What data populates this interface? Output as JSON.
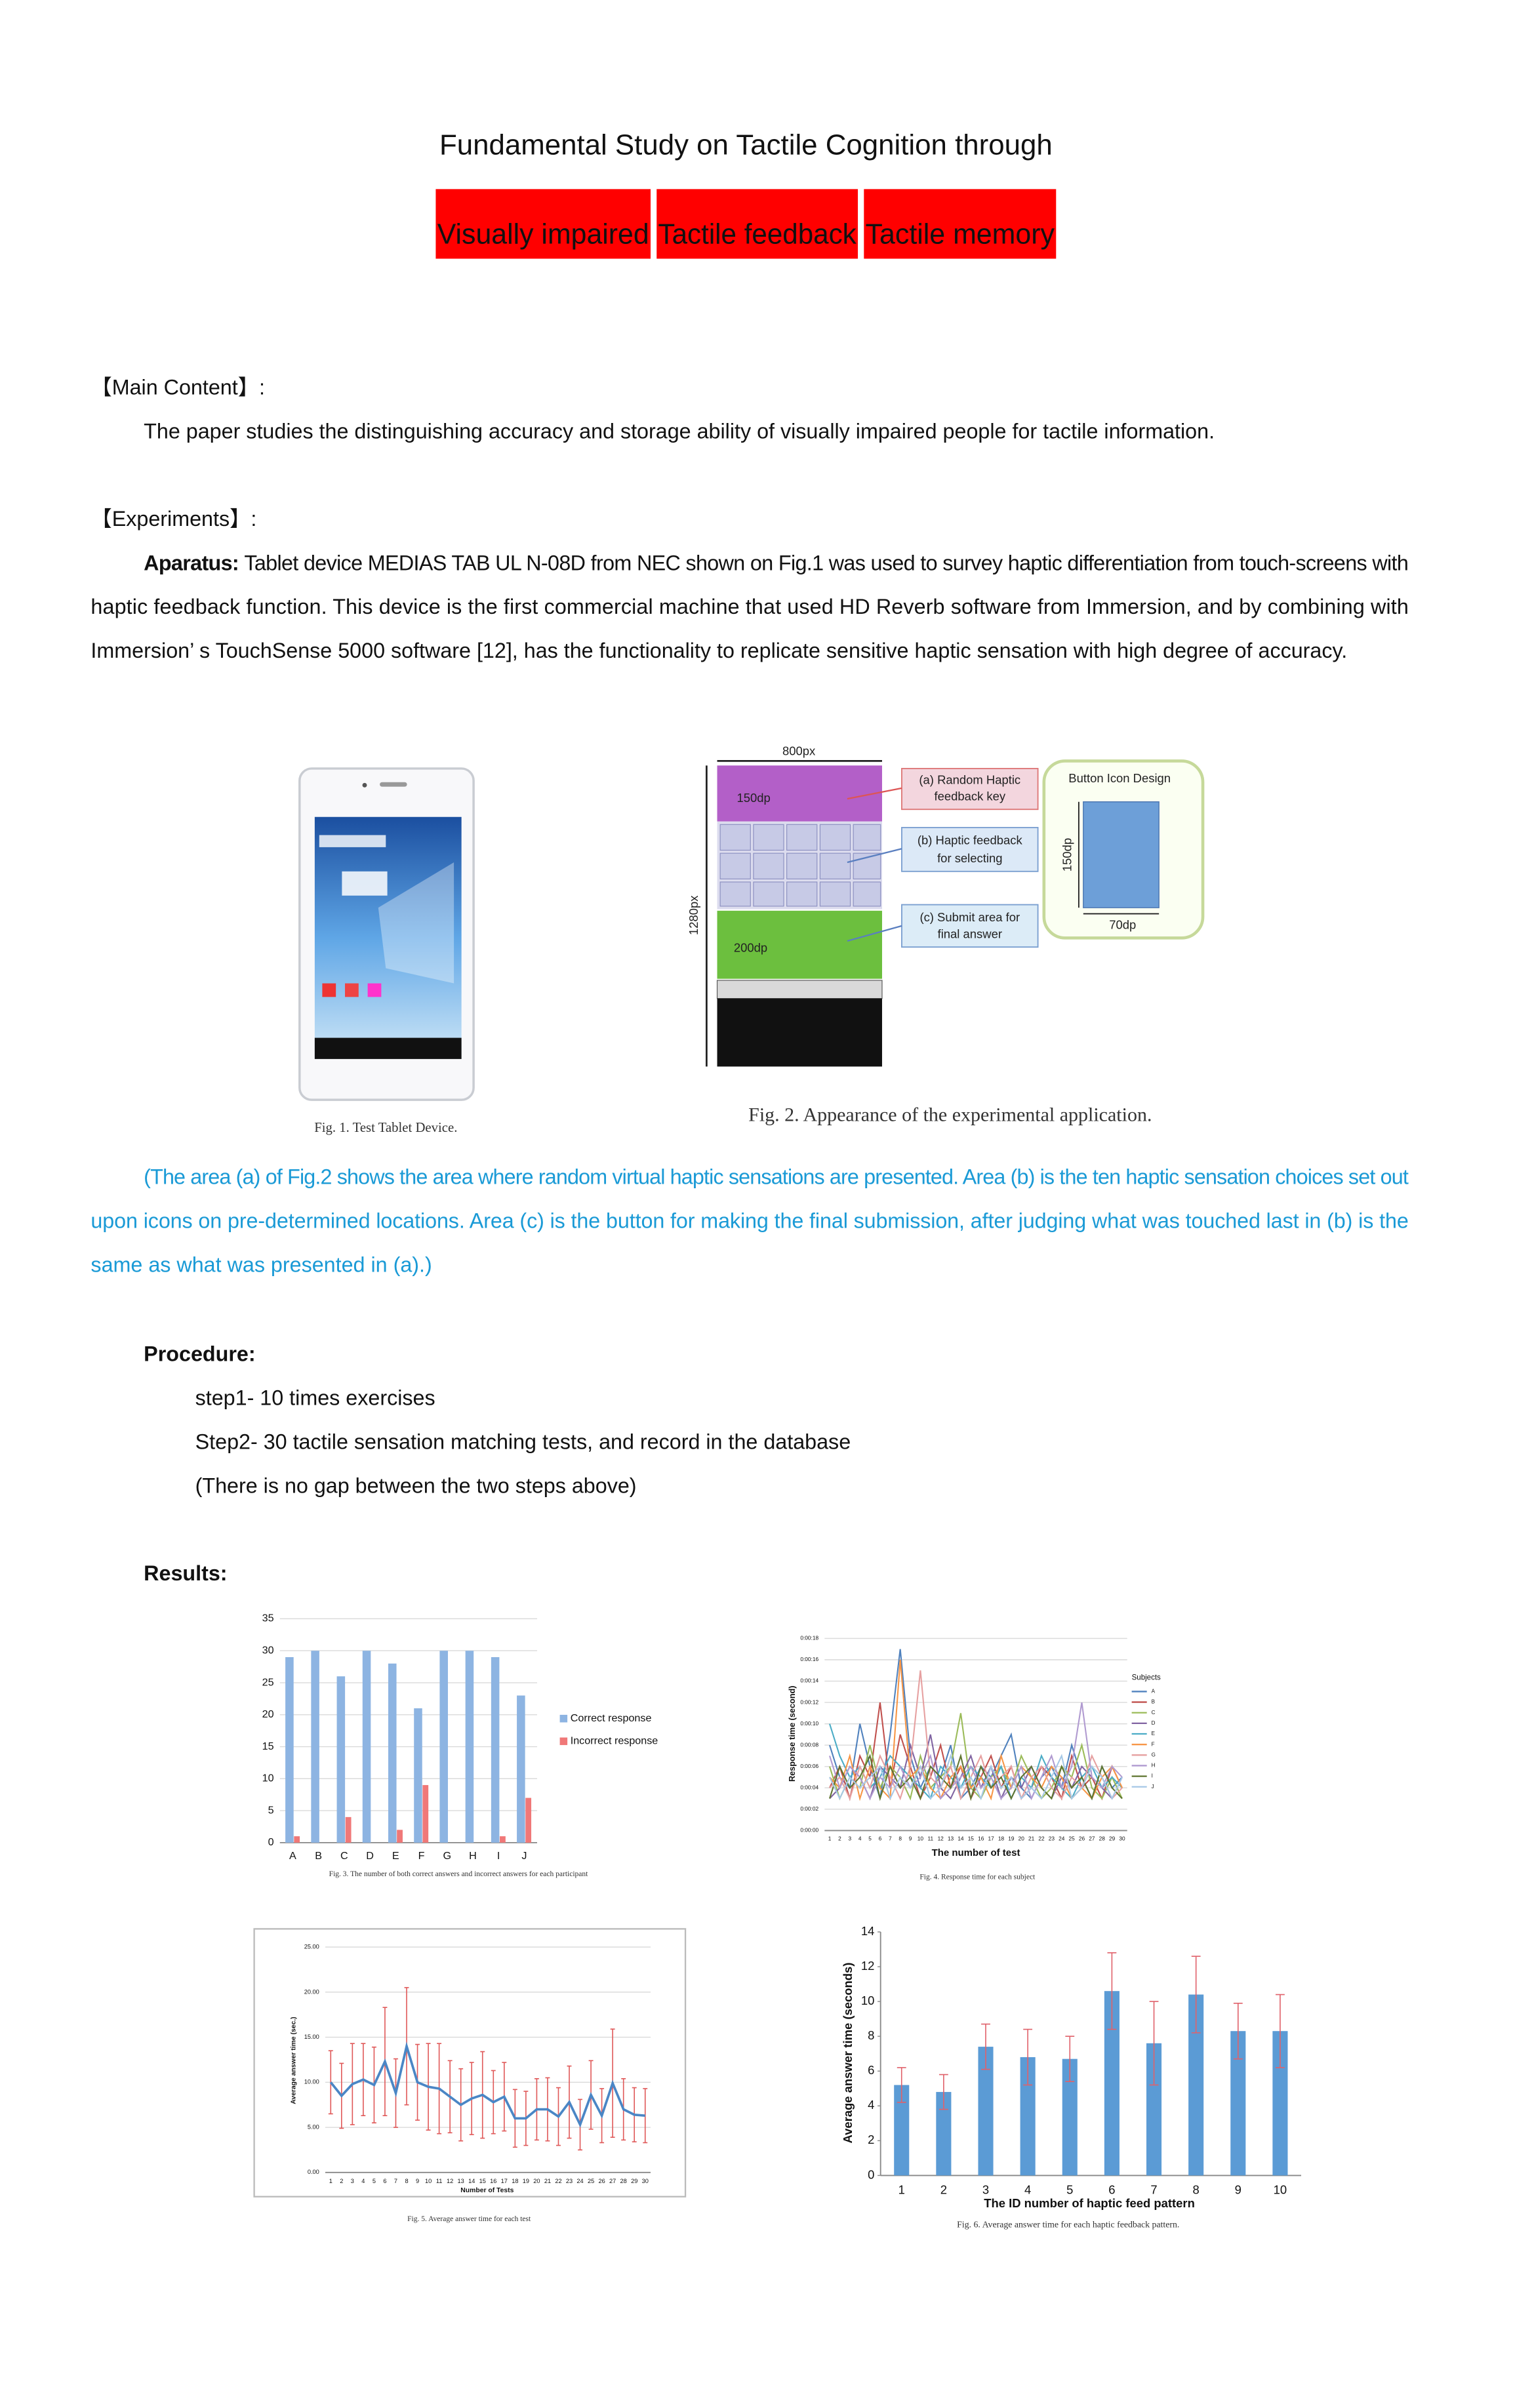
{
  "header": {
    "title": "Fundamental Study on Tactile Cognition through",
    "keywords": [
      "Visually impaired",
      "Tactile feedback",
      "Tactile memory"
    ]
  },
  "main_content": {
    "heading": "【Main Content】:",
    "text": "The paper studies the distinguishing accuracy and storage ability of visually impaired people for tactile information."
  },
  "experiments": {
    "heading": "【Experiments】:",
    "apparatus_label": "Aparatus:",
    "apparatus_lines": [
      "Tablet device MEDIAS TAB UL N-08D from NEC shown on Fig.1 was used to survey haptic differentiation from touch-screens with",
      "haptic feedback function. This device is the  first commercial machine that used HD Reverb software from Immersion, and by combining with",
      "Immersion’ s TouchSense 5000 software [12], has the functionality to replicate sensitive haptic sensation with high degree of accuracy."
    ]
  },
  "fig1": {
    "caption": "Fig. 1.   Test Tablet Device."
  },
  "fig2": {
    "caption": "Fig. 2.   Appearance of the experimental application.",
    "width_label": "800px",
    "height_label": "1280px",
    "top_label": "150dp",
    "bottom_label": "200dp",
    "callouts": [
      [
        "(a) Random Haptic",
        "feedback key"
      ],
      [
        "(b) Haptic feedback",
        "for selecting"
      ],
      [
        "(c) Submit area for",
        "final answer"
      ]
    ],
    "icon_title": "Button Icon Design",
    "icon_height": "150dp",
    "icon_width": "70dp"
  },
  "note": {
    "lines": [
      "(The area (a) of Fig.2 shows the area where random virtual haptic sensations are presented. Area (b) is the ten haptic sensation choices set out",
      "upon icons on pre-determined locations. Area (c) is the button for making the final submission, after judging what was touched last in (b) is the",
      "same as what was presented in (a).)"
    ]
  },
  "procedure": {
    "heading": "Procedure:",
    "steps": [
      "step1- 10 times exercises",
      "Step2- 30 tactile sensation matching tests, and record in the database",
      "(There is no gap between the two steps above)"
    ]
  },
  "results": {
    "heading": "Results:"
  },
  "chart_data": [
    {
      "type": "bar",
      "caption": "Fig. 3.   The number of both correct answers and incorrect answers for each participant",
      "categories": [
        "A",
        "B",
        "C",
        "D",
        "E",
        "F",
        "G",
        "H",
        "I",
        "J"
      ],
      "series": [
        {
          "name": "Correct response",
          "color": "#8db4e2",
          "values": [
            29,
            30,
            26,
            30,
            28,
            21,
            30,
            30,
            29,
            23
          ]
        },
        {
          "name": "Incorrect response",
          "color": "#f07878",
          "values": [
            1,
            0,
            4,
            0,
            2,
            9,
            0,
            0,
            1,
            7
          ]
        }
      ],
      "ylim": [
        0,
        35
      ],
      "yticks": [
        0,
        5,
        10,
        15,
        20,
        25,
        30,
        35
      ],
      "grid": true,
      "legend": "right"
    },
    {
      "type": "line",
      "caption": "Fig. 4.   Response time for each subject",
      "y_label": "Response time (second)",
      "x_label": "The number of test",
      "legend_title": "Subjects",
      "x": [
        1,
        2,
        3,
        4,
        5,
        6,
        7,
        8,
        9,
        10,
        11,
        12,
        13,
        14,
        15,
        16,
        17,
        18,
        19,
        20,
        21,
        22,
        23,
        24,
        25,
        26,
        27,
        28,
        29,
        30
      ],
      "xlim": [
        0.5,
        30.5
      ],
      "ylim": [
        0,
        18
      ],
      "yticks": [
        {
          "value": 0,
          "label": "0:00:00"
        },
        {
          "value": 2,
          "label": "0:00:02"
        },
        {
          "value": 4,
          "label": "0:00:04"
        },
        {
          "value": 6,
          "label": "0:00:06"
        },
        {
          "value": 8,
          "label": "0:00:08"
        },
        {
          "value": 10,
          "label": "0:00:10"
        },
        {
          "value": 12,
          "label": "0:00:12"
        },
        {
          "value": 14,
          "label": "0:00:14"
        },
        {
          "value": 16,
          "label": "0:00:16"
        },
        {
          "value": 18,
          "label": "0:00:18"
        }
      ],
      "grid": true,
      "legend": "right",
      "series": [
        {
          "name": "A",
          "color": "#4f81bd",
          "values": [
            8,
            5,
            4,
            10,
            6,
            3,
            9,
            17,
            7,
            4,
            6,
            5,
            8,
            3,
            4,
            6,
            5,
            7,
            9,
            4,
            3,
            5,
            6,
            4,
            8,
            5,
            3,
            6,
            4,
            5
          ]
        },
        {
          "name": "B",
          "color": "#c0504d",
          "values": [
            4,
            6,
            3,
            7,
            5,
            12,
            4,
            9,
            6,
            3,
            5,
            8,
            4,
            6,
            3,
            5,
            7,
            4,
            6,
            3,
            4,
            6,
            5,
            3,
            7,
            4,
            5,
            3,
            6,
            4
          ]
        },
        {
          "name": "C",
          "color": "#9bbb59",
          "values": [
            6,
            3,
            5,
            4,
            8,
            4,
            6,
            5,
            3,
            7,
            4,
            5,
            6,
            11,
            4,
            3,
            5,
            6,
            4,
            7,
            5,
            3,
            4,
            6,
            5,
            8,
            4,
            3,
            5,
            3
          ]
        },
        {
          "name": "D",
          "color": "#8064a2",
          "values": [
            3,
            4,
            6,
            5,
            3,
            6,
            5,
            4,
            8,
            5,
            9,
            4,
            3,
            5,
            7,
            4,
            6,
            3,
            5,
            4,
            6,
            4,
            3,
            5,
            4,
            6,
            5,
            4,
            3,
            5
          ]
        },
        {
          "name": "E",
          "color": "#4bacc6",
          "values": [
            10,
            7,
            5,
            6,
            4,
            5,
            7,
            6,
            5,
            4,
            3,
            6,
            5,
            4,
            6,
            5,
            4,
            6,
            3,
            5,
            4,
            7,
            5,
            4,
            3,
            5,
            6,
            4,
            5,
            4
          ]
        },
        {
          "name": "F",
          "color": "#f79646",
          "values": [
            5,
            4,
            7,
            3,
            6,
            4,
            3,
            16,
            5,
            6,
            4,
            3,
            5,
            6,
            4,
            5,
            3,
            7,
            4,
            6,
            5,
            4,
            6,
            5,
            3,
            4,
            3,
            5,
            6,
            4
          ]
        },
        {
          "name": "G",
          "color": "#e6a0a0",
          "values": [
            4,
            5,
            3,
            6,
            4,
            7,
            5,
            3,
            6,
            15,
            5,
            4,
            6,
            3,
            5,
            7,
            4,
            5,
            6,
            3,
            5,
            6,
            4,
            3,
            5,
            4,
            7,
            5,
            3,
            4
          ]
        },
        {
          "name": "H",
          "color": "#b09ad0",
          "values": [
            7,
            4,
            6,
            5,
            3,
            5,
            4,
            6,
            4,
            5,
            7,
            3,
            4,
            5,
            6,
            4,
            5,
            3,
            4,
            6,
            3,
            5,
            7,
            4,
            6,
            12,
            5,
            4,
            6,
            5
          ]
        },
        {
          "name": "I",
          "color": "#5f7530",
          "values": [
            3,
            6,
            4,
            5,
            7,
            3,
            6,
            4,
            5,
            3,
            6,
            5,
            4,
            7,
            3,
            6,
            4,
            5,
            3,
            5,
            6,
            4,
            3,
            6,
            4,
            5,
            3,
            6,
            4,
            3
          ]
        },
        {
          "name": "J",
          "color": "#a6c8e6",
          "values": [
            5,
            3,
            5,
            4,
            5,
            6,
            3,
            5,
            4,
            6,
            3,
            4,
            7,
            4,
            5,
            3,
            6,
            4,
            5,
            3,
            4,
            3,
            5,
            7,
            3,
            4,
            6,
            5,
            3,
            5
          ]
        }
      ]
    },
    {
      "type": "line",
      "caption": "Fig. 5.   Average answer time for each test",
      "y_label": "Average answer time (sec.)",
      "x_label": "Number of Tests",
      "color": "#4a86c5",
      "error_color": "#e05a5a",
      "x": [
        1,
        2,
        3,
        4,
        5,
        6,
        7,
        8,
        9,
        10,
        11,
        12,
        13,
        14,
        15,
        16,
        17,
        18,
        19,
        20,
        21,
        22,
        23,
        24,
        25,
        26,
        27,
        28,
        29,
        30
      ],
      "xlim": [
        0.5,
        30.5
      ],
      "values": [
        10,
        8.5,
        9.8,
        10.3,
        9.7,
        12.3,
        8.8,
        14,
        10,
        9.5,
        9.3,
        8.4,
        7.5,
        8.2,
        8.6,
        7.8,
        8.4,
        6,
        6,
        7,
        7,
        6.2,
        7.8,
        5.3,
        8.6,
        6.3,
        9.9,
        7,
        6.4,
        6.3
      ],
      "errors": [
        3.5,
        3.6,
        4.5,
        4,
        4.2,
        6,
        3.8,
        6.5,
        4.2,
        4.8,
        5,
        4,
        4,
        4,
        4.8,
        3.5,
        3.8,
        3.2,
        3,
        3.4,
        3.5,
        3.2,
        4,
        2.8,
        3.8,
        3,
        6,
        3.4,
        3,
        3
      ],
      "ylim": [
        0,
        25
      ],
      "yticks": [
        {
          "value": 0,
          "label": "0.00"
        },
        {
          "value": 5,
          "label": "5.00"
        },
        {
          "value": 10,
          "label": "10.00"
        },
        {
          "value": 15,
          "label": "15.00"
        },
        {
          "value": 20,
          "label": "20.00"
        },
        {
          "value": 25,
          "label": "25.00"
        }
      ],
      "grid": true
    },
    {
      "type": "bar",
      "caption": "Fig. 6.   Average answer time for each haptic feedback pattern.",
      "y_label": "Average answer time (seconds)",
      "x_label": "The ID number of haptic feed pattern",
      "color": "#5b9bd5",
      "error_color": "#e0626b",
      "x": [
        1,
        2,
        3,
        4,
        5,
        6,
        7,
        8,
        9,
        10
      ],
      "xlim": [
        0.5,
        10.5
      ],
      "values": [
        5.2,
        4.8,
        7.4,
        6.8,
        6.7,
        10.6,
        7.6,
        10.4,
        8.3,
        8.3
      ],
      "errors": [
        1,
        1,
        1.3,
        1.6,
        1.3,
        2.2,
        2.4,
        2.2,
        1.6,
        2.1
      ],
      "ylim": [
        0,
        14
      ],
      "yticks": [
        0,
        2,
        4,
        6,
        8,
        10,
        12,
        14
      ],
      "grid": false
    }
  ]
}
